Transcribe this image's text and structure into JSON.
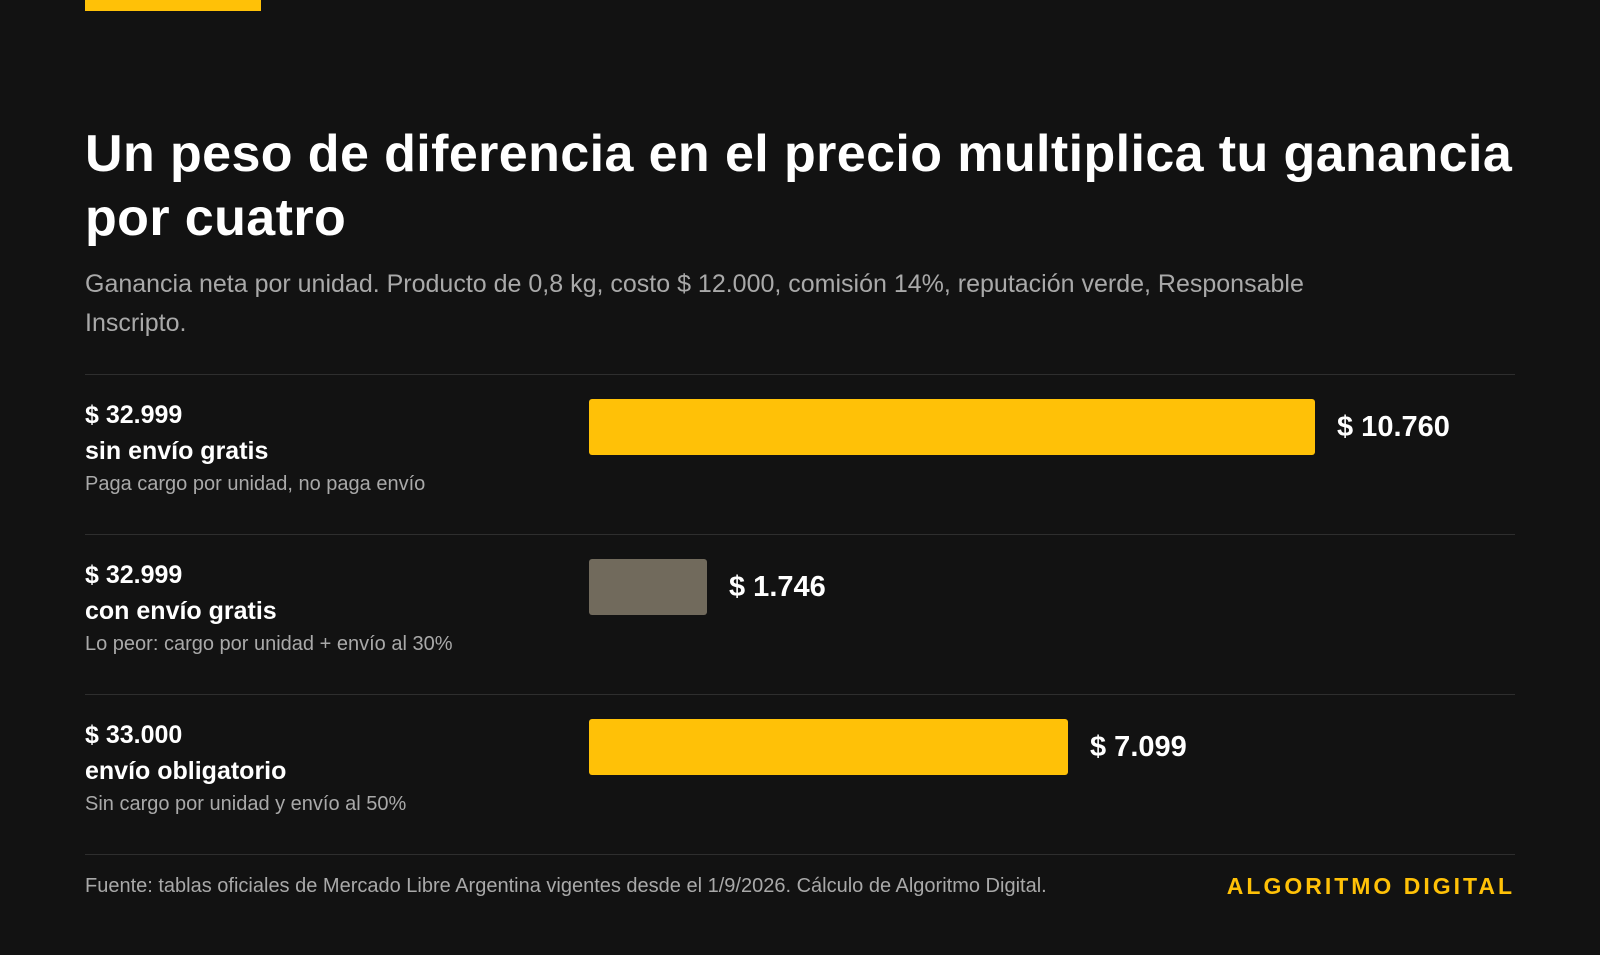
{
  "title": "Un peso de diferencia en el precio multiplica tu ganancia por cuatro",
  "subtitle": "Ganancia neta por unidad. Producto de 0,8 kg, costo $ 12.000, comisión 14%, reputación verde, Responsable Inscripto.",
  "colors": {
    "accent": "#ffc107",
    "muted_bar": "#716a5c",
    "background": "#121212"
  },
  "chart_data": {
    "type": "bar",
    "orientation": "horizontal",
    "title": "Un peso de diferencia en el precio multiplica tu ganancia por cuatro",
    "subtitle": "Ganancia neta por unidad. Producto de 0,8 kg, costo $ 12.000, comisión 14%, reputación verde, Responsable Inscripto.",
    "grid": false,
    "xlim": [
      0,
      10760
    ],
    "categories": [
      {
        "price": "$ 32.999",
        "label": "sin envío gratis",
        "note": "Paga cargo por unidad, no paga envío",
        "value": 10760,
        "value_label": "$ 10.760",
        "color": "#ffc107"
      },
      {
        "price": "$ 32.999",
        "label": "con envío gratis",
        "note": "Lo peor: cargo por unidad + envío al 30%",
        "value": 1746,
        "value_label": "$ 1.746",
        "color": "#716a5c"
      },
      {
        "price": "$ 33.000",
        "label": "envío obligatorio",
        "note": "Sin cargo por unidad y envío al 50%",
        "value": 7099,
        "value_label": "$ 7.099",
        "color": "#ffc107"
      }
    ]
  },
  "footer": {
    "source": "Fuente: tablas oficiales de Mercado Libre Argentina vigentes desde el 1/9/2026. Cálculo de Algoritmo Digital.",
    "brand": "ALGORITMO DIGITAL"
  }
}
